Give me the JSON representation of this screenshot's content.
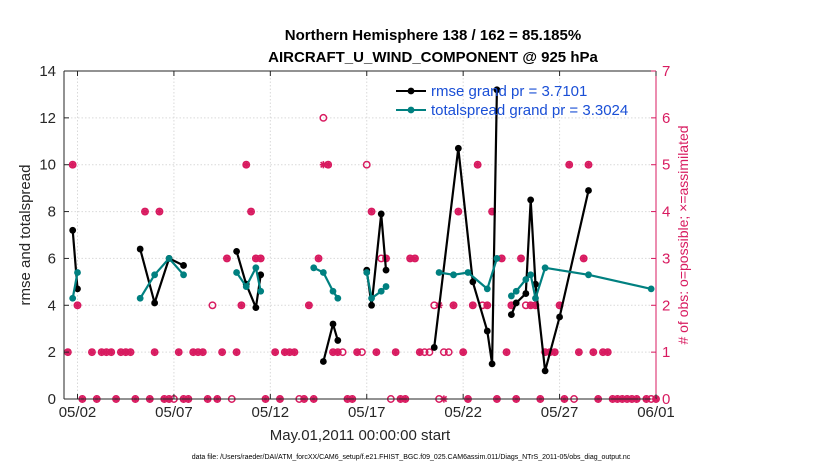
{
  "chart_data": {
    "type": "line",
    "title": "Northern Hemisphere 138 / 162 = 85.185%",
    "subtitle": "AIRCRAFT_U_WIND_COMPONENT @ 925 hPa",
    "xlabel": "May.01,2011 00:00:00 start",
    "ylabel": "rmse and totalspread",
    "ylabel_right": "# of obs: o=possible; ×=assimilated",
    "xlim": [
      0.3,
      31.0
    ],
    "ylim": [
      0,
      14
    ],
    "ylim_right": [
      0,
      7
    ],
    "x_ticks": [
      1,
      6,
      11,
      16,
      21,
      26,
      31
    ],
    "x_tick_labels": [
      "05/02",
      "05/07",
      "05/12",
      "05/17",
      "05/22",
      "05/27",
      "06/01"
    ],
    "y_ticks": [
      0,
      2,
      4,
      6,
      8,
      10,
      12,
      14
    ],
    "y_ticks_right": [
      0,
      1,
      2,
      3,
      4,
      5,
      6,
      7
    ],
    "legend_position": "top-right",
    "footnote": "data file: /Users/raeder/DAI/ATM_forcXX/CAM6_setup/f.e21.FHIST_BGC.f09_025.CAM6assim.011/Diags_NTrS_2011-05/obs_diag_output.nc",
    "series": [
      {
        "name": "rmse",
        "legend_label": "rmse grand pr = 3.7101",
        "color": "#000000",
        "x": [
          0.75,
          1.0,
          null,
          4.25,
          5.0,
          5.75,
          6.5,
          null,
          9.25,
          9.75,
          10.25,
          10.5,
          null,
          13.75,
          14.25,
          14.5,
          null,
          16.0,
          16.25,
          16.75,
          17.0,
          null,
          19.5,
          20.75,
          21.5,
          22.25,
          22.5,
          22.75,
          null,
          23.5,
          23.75,
          24.25,
          24.5,
          24.75,
          25.25,
          26.0,
          27.5
        ],
        "y": [
          7.2,
          4.7,
          null,
          6.4,
          4.1,
          6.0,
          5.7,
          null,
          6.3,
          4.9,
          3.9,
          5.3,
          null,
          1.6,
          3.2,
          2.5,
          null,
          5.5,
          4.0,
          7.9,
          5.5,
          null,
          2.2,
          10.7,
          5.0,
          2.9,
          1.5,
          13.2,
          null,
          3.6,
          4.1,
          4.5,
          8.5,
          4.9,
          1.2,
          3.5,
          8.9
        ]
      },
      {
        "name": "totalspread",
        "legend_label": "totalspread grand pr = 3.3024",
        "color": "#008080",
        "x": [
          0.75,
          1.0,
          null,
          4.25,
          5.0,
          5.75,
          6.5,
          null,
          9.25,
          9.75,
          10.25,
          10.5,
          null,
          13.25,
          13.75,
          14.25,
          14.5,
          null,
          16.0,
          16.25,
          16.75,
          17.0,
          null,
          19.75,
          20.5,
          21.25,
          22.25,
          22.75,
          null,
          23.5,
          23.75,
          24.25,
          24.5,
          24.75,
          25.25,
          27.5,
          30.75
        ],
        "y": [
          4.3,
          5.4,
          null,
          4.3,
          5.3,
          6.0,
          5.3,
          null,
          5.4,
          4.8,
          5.6,
          4.6,
          null,
          5.6,
          5.4,
          4.6,
          4.3,
          null,
          5.4,
          4.3,
          4.6,
          4.8,
          null,
          5.4,
          5.3,
          5.4,
          4.7,
          6.0,
          null,
          4.4,
          4.6,
          5.1,
          5.3,
          4.3,
          5.6,
          5.3,
          4.7
        ]
      }
    ],
    "obs_possible": {
      "name": "# of obs possible",
      "marker": "o",
      "color": "#d81b60",
      "x": [
        0.5,
        0.75,
        1.0,
        1.25,
        1.75,
        2.0,
        2.25,
        2.5,
        2.75,
        3.0,
        3.25,
        3.5,
        3.75,
        4.0,
        4.5,
        4.75,
        5.0,
        5.25,
        5.5,
        5.75,
        6.0,
        6.25,
        6.5,
        6.75,
        7.0,
        7.25,
        7.5,
        7.75,
        8.0,
        8.25,
        8.5,
        8.75,
        9.0,
        9.25,
        9.5,
        9.75,
        10.0,
        10.25,
        10.5,
        10.75,
        11.25,
        11.5,
        11.75,
        12.0,
        12.25,
        12.5,
        12.75,
        13.0,
        13.25,
        13.5,
        13.75,
        14.0,
        14.25,
        14.5,
        14.75,
        15.0,
        15.25,
        15.5,
        15.75,
        16.0,
        16.25,
        16.5,
        16.75,
        17.0,
        17.25,
        17.5,
        17.75,
        18.0,
        18.25,
        18.5,
        18.75,
        19.0,
        19.25,
        19.5,
        19.75,
        20.0,
        20.25,
        20.5,
        20.75,
        21.0,
        21.25,
        21.5,
        21.75,
        22.0,
        22.25,
        22.5,
        22.75,
        23.0,
        23.25,
        23.5,
        23.75,
        24.0,
        24.25,
        24.5,
        24.75,
        25.0,
        25.25,
        25.5,
        25.75,
        26.0,
        26.25,
        26.5,
        26.75,
        27.0,
        27.25,
        27.5,
        27.75,
        28.0,
        28.25,
        28.5,
        28.75,
        29.0,
        29.25,
        29.5,
        29.75,
        30.0,
        30.5,
        30.75,
        31.0
      ],
      "y": [
        1,
        5,
        2,
        0,
        1,
        0,
        1,
        1,
        1,
        0,
        1,
        1,
        1,
        0,
        4,
        0,
        1,
        4,
        0,
        0,
        0,
        1,
        0,
        0,
        1,
        1,
        1,
        0,
        2,
        0,
        1,
        3,
        0,
        1,
        2,
        5,
        4,
        3,
        3,
        0,
        1,
        0,
        1,
        1,
        1,
        0,
        0,
        2,
        0,
        3,
        6,
        5,
        1,
        1,
        1,
        0,
        0,
        1,
        1,
        5,
        4,
        1,
        3,
        3,
        0,
        1,
        0,
        0,
        3,
        3,
        1,
        1,
        1,
        2,
        0,
        1,
        1,
        2,
        4,
        1,
        0,
        2,
        5,
        2,
        2,
        4,
        0,
        3,
        1,
        2,
        0,
        3,
        2,
        2,
        2,
        0,
        1,
        1,
        1,
        2,
        0,
        5,
        0,
        1,
        3,
        5,
        1,
        0,
        1,
        1,
        0,
        0,
        0,
        0,
        0,
        0,
        0,
        0,
        0
      ],
      "possible_only_x": [
        0.75,
        6.0,
        8.0,
        9.0,
        12.5,
        14.75,
        15.75,
        16.0,
        16.75,
        17.25,
        19.0,
        19.25,
        19.5,
        20.25,
        22.0,
        24.25,
        26.75,
        30.75
      ]
    },
    "obs_assimilated": {
      "name": "# of obs assimilated",
      "marker": "×",
      "color": "#d81b60",
      "x": [
        0.5,
        0.75,
        1.0,
        1.25,
        1.75,
        2.0,
        2.25,
        2.5,
        2.75,
        3.0,
        3.25,
        3.5,
        3.75,
        4.0,
        4.5,
        4.75,
        5.0,
        5.25,
        5.5,
        5.75,
        6.25,
        6.5,
        6.75,
        7.0,
        7.25,
        7.5,
        7.75,
        8.25,
        8.5,
        8.75,
        9.25,
        9.5,
        9.75,
        10.0,
        10.25,
        10.5,
        10.75,
        11.25,
        11.5,
        11.75,
        12.0,
        12.25,
        12.75,
        13.0,
        13.25,
        13.5,
        13.75,
        14.0,
        14.25,
        14.5,
        15.0,
        15.25,
        15.5,
        16.25,
        16.5,
        17.0,
        17.5,
        17.75,
        18.0,
        18.25,
        18.5,
        18.75,
        19.75,
        20.0,
        20.5,
        20.75,
        21.0,
        21.25,
        21.5,
        21.75,
        22.25,
        22.5,
        22.75,
        23.0,
        23.25,
        23.5,
        23.75,
        24.0,
        24.5,
        24.75,
        25.0,
        25.25,
        25.5,
        25.75,
        26.0,
        26.25,
        26.5,
        27.0,
        27.25,
        27.5,
        27.75,
        28.0,
        28.25,
        28.5,
        28.75,
        29.0,
        29.25,
        29.5,
        29.75,
        30.0,
        30.5,
        31.0
      ],
      "y": [
        1,
        5,
        2,
        0,
        1,
        0,
        1,
        1,
        1,
        0,
        1,
        1,
        1,
        0,
        4,
        0,
        1,
        4,
        0,
        0,
        1,
        0,
        0,
        1,
        1,
        1,
        0,
        0,
        1,
        3,
        1,
        2,
        5,
        4,
        3,
        3,
        0,
        1,
        0,
        1,
        1,
        1,
        0,
        2,
        0,
        3,
        5,
        5,
        1,
        1,
        0,
        0,
        1,
        4,
        1,
        3,
        1,
        0,
        0,
        3,
        3,
        1,
        2,
        0,
        2,
        4,
        1,
        0,
        2,
        5,
        2,
        4,
        0,
        3,
        1,
        2,
        0,
        3,
        2,
        2,
        0,
        1,
        1,
        1,
        2,
        0,
        5,
        1,
        3,
        5,
        1,
        0,
        1,
        1,
        0,
        0,
        0,
        0,
        0,
        0,
        0,
        0
      ]
    }
  }
}
